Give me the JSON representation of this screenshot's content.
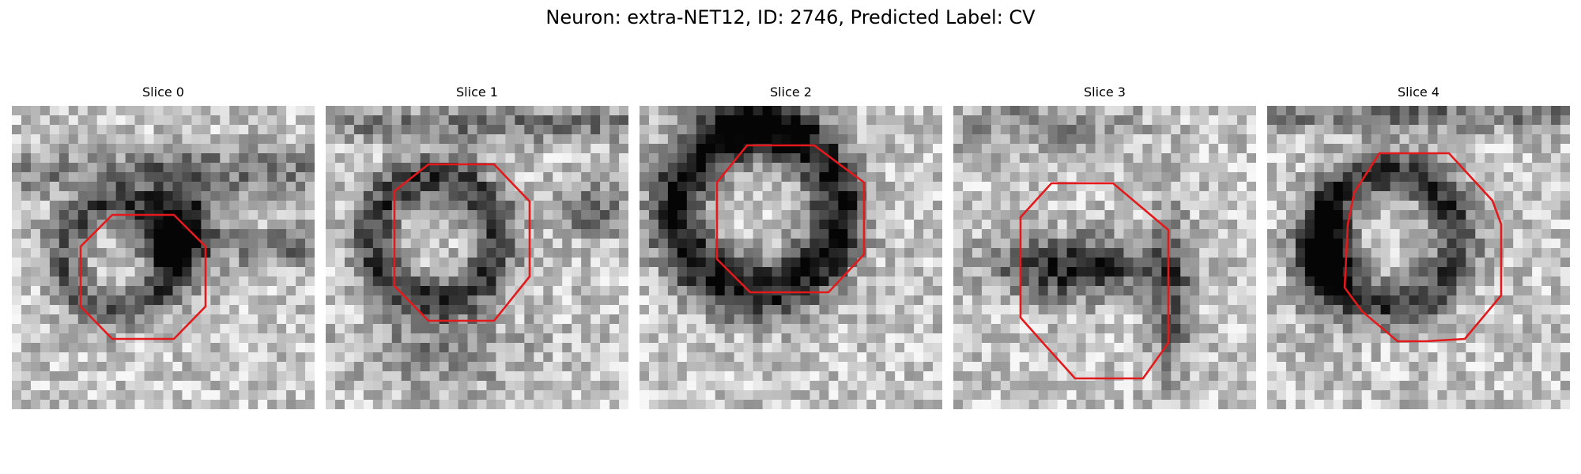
{
  "figure": {
    "title": "Neuron: extra-NET12, ID: 2746, Predicted Label: CV",
    "contour_color": "#e31a1c",
    "colormap": "gray"
  },
  "panels": [
    {
      "title": "Slice 0",
      "seed": 11,
      "dark_regions": "ring segment around outlined region, dark blob to right"
    },
    {
      "title": "Slice 1",
      "seed": 23,
      "dark_regions": "dark ring around outlined region"
    },
    {
      "title": "Slice 2",
      "seed": 37,
      "dark_regions": "thick dark ring surrounding bright center"
    },
    {
      "title": "Slice 3",
      "seed": 41,
      "dark_regions": "dark band across lower part of outlined region"
    },
    {
      "title": "Slice 4",
      "seed": 59,
      "dark_regions": "dark ring around outlined region, dark left edge"
    }
  ]
}
